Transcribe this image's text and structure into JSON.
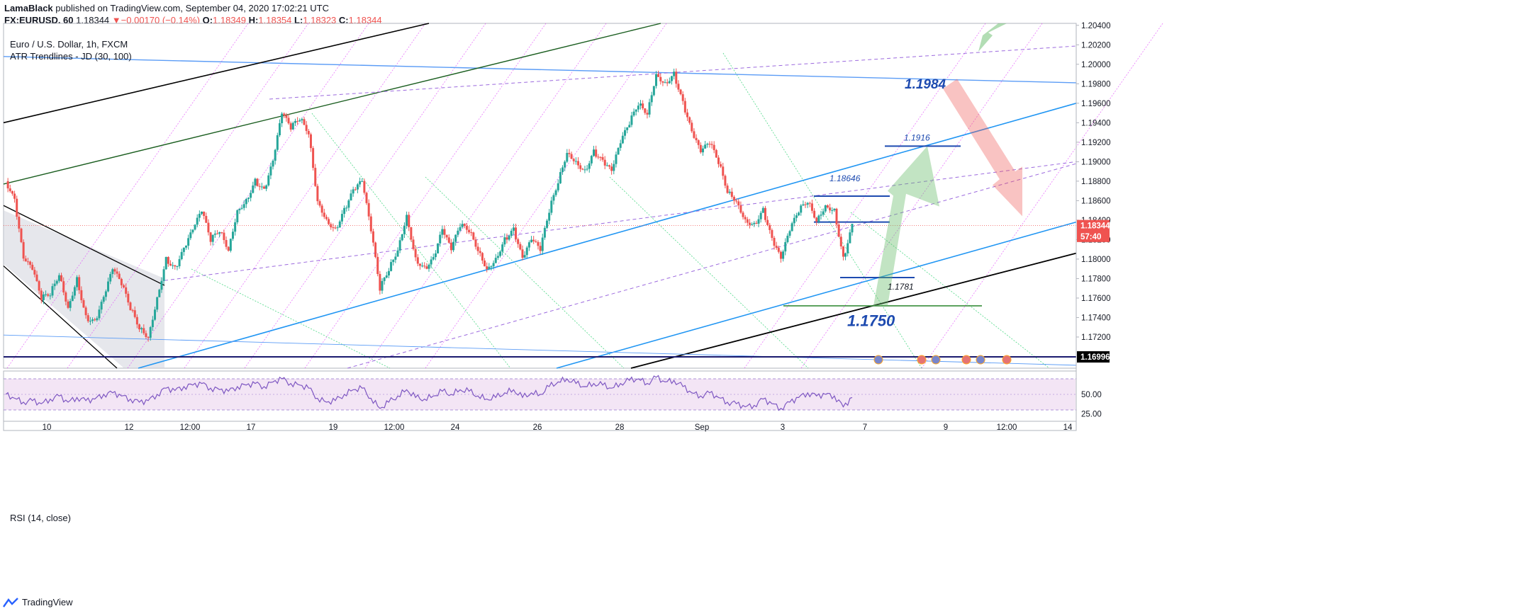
{
  "header": {
    "author": "LamaBlack",
    "published_text": "published on TradingView.com, September 04, 2020 17:02:21 UTC",
    "symbol": "FX:EURUSD, 60",
    "last": "1.18344",
    "change": "−0.00170 (−0.14%)",
    "o_label": "O:",
    "o": "1.18349",
    "h_label": "H:",
    "h": "1.18354",
    "l_label": "L:",
    "l": "1.18323",
    "c_label": "C:",
    "c": "1.18344"
  },
  "legend": {
    "instrument": "Euro / U.S. Dollar, 1h, FXCM",
    "indicator": "ATR Trendlines - JD (30, 100)",
    "rsi": "RSI (14, close)"
  },
  "footer": {
    "brand": "TradingView"
  },
  "colors": {
    "up": "#26a69a",
    "down": "#ef5350",
    "blue_line": "#2196f3",
    "light_blue_line": "#5b9cf6",
    "dark_green_line": "#1b5e20",
    "black_line": "#000000",
    "navy_line": "#1a1a6e",
    "magenta_dotted": "#e040fb",
    "green_dotted": "#00c853",
    "rsi_line": "#7e57c2",
    "rsi_band": "#f3e5f5",
    "price_tag": "#ef5350"
  },
  "chart_data": {
    "type": "candlestick",
    "title": "Euro / U.S. Dollar, 1h, FXCM",
    "ylim": [
      1.1688,
      1.2042
    ],
    "y_ticks": [
      "1.20400",
      "1.20200",
      "1.20000",
      "1.19800",
      "1.19600",
      "1.19400",
      "1.19200",
      "1.19000",
      "1.18800",
      "1.18600",
      "1.18400",
      "1.18200",
      "1.18000",
      "1.17800",
      "1.17600",
      "1.17400",
      "1.17200"
    ],
    "x_ticks": [
      "10",
      "12",
      "12:00",
      "17",
      "19",
      "12:00",
      "24",
      "26",
      "28",
      "Sep",
      "3",
      "7",
      "9",
      "12:00",
      "14"
    ],
    "price_tags": [
      {
        "label": "1.18344",
        "value": 1.18344,
        "color": "#ef5350"
      },
      {
        "label": "57:40",
        "value": 1.18233,
        "color": "#ef5350"
      },
      {
        "label": "1.16996",
        "value": 1.16996,
        "color": "#000000"
      }
    ],
    "annotations": [
      {
        "text": "1.1984",
        "value": 1.1984
      },
      {
        "text": "1.1916",
        "value": 1.1916
      },
      {
        "text": "1.18646",
        "value": 1.18646
      },
      {
        "text": "1.1781",
        "value": 1.1781
      },
      {
        "text": "1.1750",
        "value": 1.175
      }
    ],
    "price_path": [
      [
        0,
        1.188
      ],
      [
        1,
        1.186
      ],
      [
        2,
        1.18
      ],
      [
        3,
        1.179
      ],
      [
        4,
        1.176
      ],
      [
        5,
        1.1765
      ],
      [
        6,
        1.1785
      ],
      [
        7,
        1.175
      ],
      [
        8,
        1.178
      ],
      [
        9,
        1.174
      ],
      [
        10,
        1.1735
      ],
      [
        11,
        1.176
      ],
      [
        12,
        1.179
      ],
      [
        13,
        1.1775
      ],
      [
        14,
        1.175
      ],
      [
        15,
        1.173
      ],
      [
        16,
        1.172
      ],
      [
        17,
        1.176
      ],
      [
        18,
        1.18
      ],
      [
        19,
        1.179
      ],
      [
        20,
        1.181
      ],
      [
        21,
        1.183
      ],
      [
        22,
        1.185
      ],
      [
        23,
        1.182
      ],
      [
        24,
        1.183
      ],
      [
        25,
        1.181
      ],
      [
        26,
        1.185
      ],
      [
        27,
        1.186
      ],
      [
        28,
        1.188
      ],
      [
        29,
        1.187
      ],
      [
        30,
        1.19
      ],
      [
        31,
        1.195
      ],
      [
        32,
        1.1935
      ],
      [
        33,
        1.1945
      ],
      [
        34,
        1.193
      ],
      [
        35,
        1.186
      ],
      [
        36,
        1.184
      ],
      [
        37,
        1.183
      ],
      [
        38,
        1.185
      ],
      [
        39,
        1.187
      ],
      [
        40,
        1.188
      ],
      [
        41,
        1.183
      ],
      [
        42,
        1.177
      ],
      [
        43,
        1.179
      ],
      [
        44,
        1.181
      ],
      [
        45,
        1.1845
      ],
      [
        46,
        1.18
      ],
      [
        47,
        1.179
      ],
      [
        48,
        1.18
      ],
      [
        49,
        1.183
      ],
      [
        50,
        1.181
      ],
      [
        51,
        1.1835
      ],
      [
        52,
        1.183
      ],
      [
        53,
        1.181
      ],
      [
        54,
        1.179
      ],
      [
        55,
        1.18
      ],
      [
        56,
        1.182
      ],
      [
        57,
        1.183
      ],
      [
        58,
        1.18
      ],
      [
        59,
        1.182
      ],
      [
        60,
        1.181
      ],
      [
        61,
        1.185
      ],
      [
        62,
        1.188
      ],
      [
        63,
        1.191
      ],
      [
        64,
        1.19
      ],
      [
        65,
        1.189
      ],
      [
        66,
        1.191
      ],
      [
        67,
        1.19
      ],
      [
        68,
        1.189
      ],
      [
        69,
        1.192
      ],
      [
        70,
        1.194
      ],
      [
        71,
        1.196
      ],
      [
        72,
        1.195
      ],
      [
        73,
        1.199
      ],
      [
        74,
        1.198
      ],
      [
        75,
        1.199
      ],
      [
        76,
        1.196
      ],
      [
        77,
        1.193
      ],
      [
        78,
        1.191
      ],
      [
        79,
        1.192
      ],
      [
        80,
        1.19
      ],
      [
        81,
        1.187
      ],
      [
        82,
        1.186
      ],
      [
        83,
        1.184
      ],
      [
        84,
        1.1835
      ],
      [
        85,
        1.185
      ],
      [
        86,
        1.182
      ],
      [
        87,
        1.18
      ],
      [
        88,
        1.183
      ],
      [
        89,
        1.185
      ],
      [
        90,
        1.186
      ],
      [
        91,
        1.184
      ],
      [
        92,
        1.1855
      ],
      [
        93,
        1.185
      ],
      [
        94,
        1.18
      ],
      [
        95,
        1.1834
      ]
    ],
    "rsi": {
      "name": "RSI (14, close)",
      "ylim": [
        20,
        80
      ],
      "y_ticks": [
        "50.00",
        "25.00"
      ],
      "bands": [
        30,
        70
      ],
      "values": [
        50,
        45,
        40,
        42,
        38,
        44,
        48,
        40,
        46,
        42,
        44,
        50,
        52,
        48,
        44,
        40,
        42,
        50,
        58,
        55,
        60,
        62,
        64,
        58,
        56,
        54,
        60,
        62,
        64,
        60,
        66,
        70,
        64,
        62,
        58,
        45,
        40,
        42,
        50,
        56,
        58,
        45,
        32,
        40,
        48,
        56,
        46,
        44,
        48,
        54,
        50,
        56,
        54,
        48,
        44,
        46,
        52,
        56,
        46,
        52,
        50,
        60,
        66,
        70,
        64,
        60,
        64,
        62,
        58,
        64,
        68,
        70,
        64,
        72,
        66,
        68,
        60,
        52,
        48,
        52,
        46,
        40,
        38,
        34,
        36,
        44,
        38,
        32,
        40,
        46,
        52,
        48,
        50,
        48,
        34,
        46
      ]
    }
  }
}
